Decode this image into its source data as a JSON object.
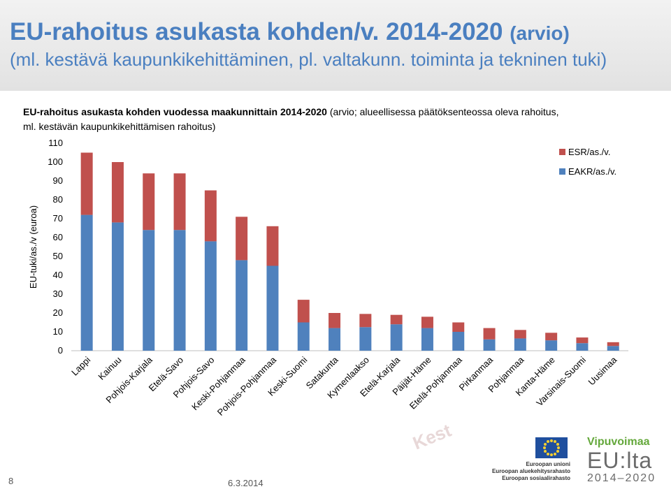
{
  "slide": {
    "title_main": "EU-rahoitus asukasta kohden/v. 2014-2020",
    "title_arvio": "(arvio)",
    "title_sub": "(ml. kestävä kaupunkikehittäminen, pl. valtakunn. toiminta ja tekninen tuki)",
    "page_number": "8",
    "date": "6.3.2014",
    "watermark": "Kest",
    "logos": {
      "eu_lines": [
        "Euroopan unioni",
        "Euroopan aluekehitysrahasto",
        "Euroopan sosiaalirahasto"
      ],
      "vipuvoimaa": "Vipuvoimaa",
      "eu_lta": "EU:lta",
      "years": "2014–2020"
    }
  },
  "chart_data": {
    "type": "bar",
    "stacked": true,
    "title_line1_bold": "EU-rahoitus  asukasta kohden vuodessa maakunnittain  2014-2020",
    "title_line1_rest": " (arvio; alueellisessa päätöksenteossa oleva rahoitus,",
    "title_line2": "ml. kestävän kaupunkikehittämisen rahoitus)",
    "ylabel": "EU-tuki/as./v (euroa)",
    "ylim": [
      0,
      110
    ],
    "yticks": [
      0,
      10,
      20,
      30,
      40,
      50,
      60,
      70,
      80,
      90,
      100,
      110
    ],
    "categories": [
      "Lappi",
      "Kainuu",
      "Pohjois-Karjala",
      "Etelä-Savo",
      "Pohjois-Savo",
      "Keski-Pohjanmaa",
      "Pohjois-Pohjanmaa",
      "Keski-Suomi",
      "Satakunta",
      "Kymenlaakso",
      "Etelä-Karjala",
      "Päijät-Häme",
      "Etelä-Pohjanmaa",
      "Pirkanmaa",
      "Pohjanmaa",
      "Kanta-Häme",
      "Varsinais-Suomi",
      "Uusimaa"
    ],
    "series": [
      {
        "name": "EAKR/as./v.",
        "color": "#4f81bd",
        "values": [
          72,
          68,
          64,
          64,
          58,
          48,
          45,
          15,
          12,
          12.5,
          14,
          12,
          10,
          6,
          6.5,
          5.5,
          4,
          2.5
        ]
      },
      {
        "name": "ESR/as./v.",
        "color": "#c0504d",
        "values": [
          33,
          32,
          30,
          30,
          27,
          23,
          21,
          12,
          8,
          7,
          5,
          6,
          5,
          6,
          4.5,
          4,
          3,
          2
        ]
      }
    ],
    "legend": "top-right",
    "legend_order": [
      "ESR/as./v.",
      "EAKR/as./v."
    ],
    "grid": false
  }
}
